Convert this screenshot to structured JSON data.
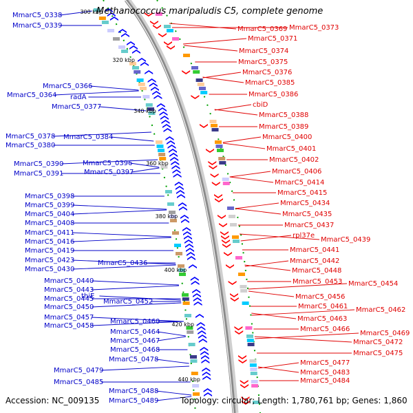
{
  "title": "Methanococcus maripaludis C5, complete genome",
  "footer": {
    "accession": "Accession: NC_009135",
    "stats": "Topology: circular; Length: 1,780,761 bp; Genes: 1,860"
  },
  "colors": {
    "forward_label": "#0000c8",
    "reverse_label": "#e00000",
    "forward_feature": "#0000ff",
    "reverse_feature": "#ff0000",
    "backbone": "#888888",
    "tick": "#00a000"
  },
  "ticks": [
    "300 kbp",
    "320 kbp",
    "340 kbp",
    "360 kbp",
    "380 kbp",
    "400 kbp",
    "420 kbp",
    "440 kbp"
  ],
  "left_labels": [
    "MmarC5_0338",
    "MmarC5_0339",
    "MmarC5_0366",
    "MmarC5_0364",
    "radA",
    "MmarC5_0377",
    "MmarC5_0378",
    "MmarC5_0380",
    "MmarC5_0384",
    "MmarC5_0390",
    "MmarC5_0391",
    "MmarC5_0396",
    "MmarC5_0397",
    "MmarC5_0398",
    "MmarC5_0399",
    "MmarC5_0404",
    "MmarC5_0408",
    "MmarC5_0411",
    "MmarC5_0416",
    "MmarC5_0419",
    "MmarC5_0423",
    "MmarC5_0430",
    "MmarC5_0436",
    "MmarC5_0440",
    "MmarC5_0443",
    "MmarC5_0445",
    "thiE",
    "MmarC5_0450",
    "MmarC5_0452",
    "MmarC5_0457",
    "MmarC5_0458",
    "MmarC5_0460",
    "MmarC5_0464",
    "MmarC5_0467",
    "MmarC5_0468",
    "MmarC5_0478",
    "MmarC5_0479",
    "MmarC5_0485",
    "MmarC5_0488",
    "MmarC5_0489"
  ],
  "right_labels": [
    "MmarC5_0369",
    "MmarC5_0373",
    "MmarC5_0371",
    "MmarC5_0374",
    "MmarC5_0375",
    "MmarC5_0376",
    "MmarC5_0385",
    "MmarC5_0386",
    "cbiD",
    "MmarC5_0388",
    "MmarC5_0389",
    "MmarC5_0400",
    "MmarC5_0401",
    "MmarC5_0402",
    "MmarC5_0406",
    "MmarC5_0414",
    "MmarC5_0415",
    "MmarC5_0434",
    "MmarC5_0435",
    "MmarC5_0437",
    "rpl37e",
    "MmarC5_0439",
    "MmarC5_0441",
    "MmarC5_0442",
    "MmarC5_0448",
    "MmarC5_0453",
    "MmarC5_0454",
    "MmarC5_0456",
    "MmarC5_0461",
    "MmarC5_0462",
    "MmarC5_0463",
    "MmarC5_0466",
    "MmarC5_0469",
    "MmarC5_0472",
    "MmarC5_0475",
    "MmarC5_0477",
    "MmarC5_0483",
    "MmarC5_0484"
  ]
}
